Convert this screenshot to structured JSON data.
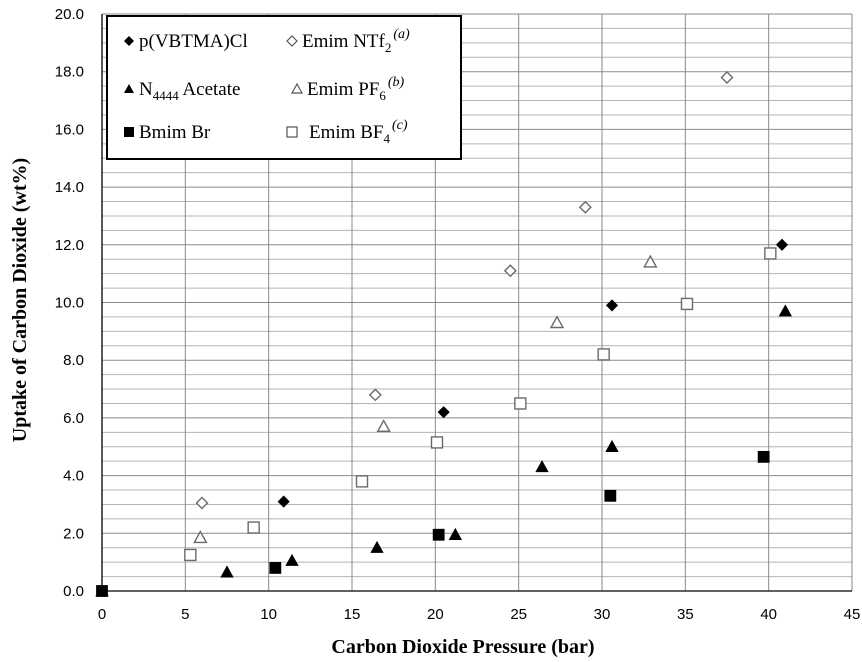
{
  "chart_data": {
    "type": "scatter",
    "xlabel": "Carbon Dioxide Pressure (bar)",
    "ylabel": "Uptake of Carbon Dioxide (wt%)",
    "xlim": [
      0,
      45
    ],
    "ylim": [
      0,
      20
    ],
    "xticks": [
      "0",
      "5",
      "10",
      "15",
      "20",
      "25",
      "30",
      "35",
      "40",
      "45"
    ],
    "yticks": [
      "0.0",
      "2.0",
      "4.0",
      "6.0",
      "8.0",
      "10.0",
      "12.0",
      "14.0",
      "16.0",
      "18.0",
      "20.0"
    ],
    "grid": "vertical lines every 5 bar, horizontal lines every 0.5 wt%",
    "legend_position": "top-left",
    "series": [
      {
        "name": "p(VBTMA)Cl",
        "marker": "diamond",
        "fill": "#000000",
        "points": [
          [
            0,
            0
          ],
          [
            10.9,
            3.1
          ],
          [
            20.5,
            6.2
          ],
          [
            30.6,
            9.9
          ],
          [
            40.8,
            12.0
          ]
        ]
      },
      {
        "name": "Emim NTf2",
        "name_main": "Emim NTf",
        "name_sub": "2",
        "name_sup": "(a)",
        "marker": "diamond",
        "fill": "none",
        "points": [
          [
            6.0,
            3.05
          ],
          [
            16.4,
            6.8
          ],
          [
            24.5,
            11.1
          ],
          [
            29.0,
            13.3
          ],
          [
            37.5,
            17.8
          ]
        ]
      },
      {
        "name": "N4444 Acetate",
        "name_main": "N",
        "name_sub": "4444",
        "name_after": " Acetate",
        "marker": "triangle",
        "fill": "#000000",
        "points": [
          [
            0,
            0
          ],
          [
            7.5,
            0.65
          ],
          [
            11.4,
            1.05
          ],
          [
            16.5,
            1.5
          ],
          [
            21.2,
            1.95
          ],
          [
            26.4,
            4.3
          ],
          [
            30.6,
            5.0
          ],
          [
            41.0,
            9.7
          ]
        ]
      },
      {
        "name": "Emim PF6",
        "name_main": "Emim PF",
        "name_sub": "6",
        "name_sup": "(b)",
        "marker": "triangle",
        "fill": "none",
        "points": [
          [
            5.9,
            1.85
          ],
          [
            16.9,
            5.7
          ],
          [
            27.3,
            9.3
          ],
          [
            32.9,
            11.4
          ]
        ]
      },
      {
        "name": "Bmim Br",
        "marker": "square",
        "fill": "#000000",
        "points": [
          [
            0,
            0
          ],
          [
            10.4,
            0.8
          ],
          [
            20.2,
            1.95
          ],
          [
            30.5,
            3.3
          ],
          [
            39.7,
            4.65
          ]
        ]
      },
      {
        "name": "Emim BF4",
        "name_main": "Emim BF",
        "name_sub": "4",
        "name_sup": "(c)",
        "marker": "square",
        "fill": "none",
        "points": [
          [
            5.3,
            1.25
          ],
          [
            9.1,
            2.2
          ],
          [
            15.6,
            3.8
          ],
          [
            20.1,
            5.15
          ],
          [
            25.1,
            6.5
          ],
          [
            30.1,
            8.2
          ],
          [
            35.1,
            9.95
          ],
          [
            40.1,
            11.7
          ]
        ]
      }
    ]
  }
}
